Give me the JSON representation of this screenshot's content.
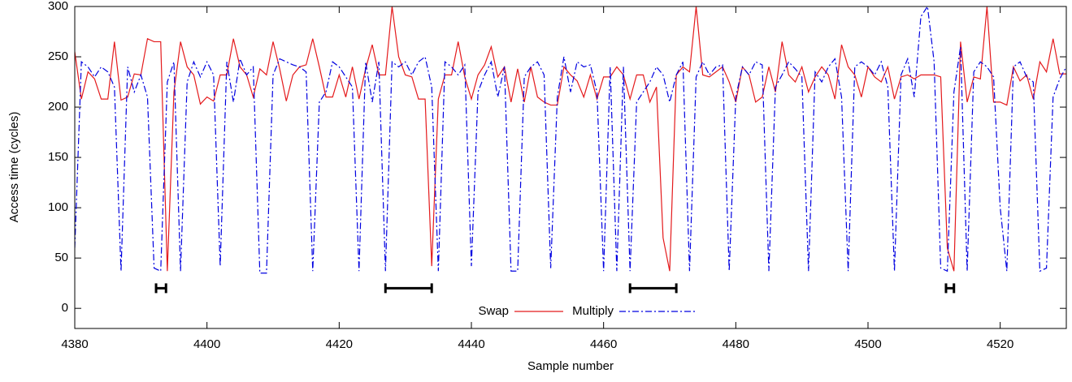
{
  "chart_data": {
    "type": "line",
    "x_label": "Sample number",
    "y_label": "Access time (cycles)",
    "xlim": [
      4380,
      4530
    ],
    "xticks": [
      4380,
      4400,
      4420,
      4440,
      4460,
      4480,
      4500,
      4520
    ],
    "ylim": [
      -20,
      300
    ],
    "yticks": [
      0,
      50,
      100,
      150,
      200,
      250,
      300
    ],
    "legend": "bottom",
    "x": [
      4380,
      4381,
      4382,
      4383,
      4384,
      4385,
      4386,
      4387,
      4388,
      4389,
      4390,
      4391,
      4392,
      4393,
      4394,
      4395,
      4396,
      4397,
      4398,
      4399,
      4400,
      4401,
      4402,
      4403,
      4404,
      4405,
      4406,
      4407,
      4408,
      4409,
      4410,
      4411,
      4412,
      4413,
      4414,
      4415,
      4416,
      4417,
      4418,
      4419,
      4420,
      4421,
      4422,
      4423,
      4424,
      4425,
      4426,
      4427,
      4428,
      4429,
      4430,
      4431,
      4432,
      4433,
      4434,
      4435,
      4436,
      4437,
      4438,
      4439,
      4440,
      4441,
      4442,
      4443,
      4444,
      4445,
      4446,
      4447,
      4448,
      4449,
      4450,
      4451,
      4452,
      4453,
      4454,
      4455,
      4456,
      4457,
      4458,
      4459,
      4460,
      4461,
      4462,
      4463,
      4464,
      4465,
      4466,
      4467,
      4468,
      4469,
      4470,
      4471,
      4472,
      4473,
      4474,
      4475,
      4476,
      4477,
      4478,
      4479,
      4480,
      4481,
      4482,
      4483,
      4484,
      4485,
      4486,
      4487,
      4488,
      4489,
      4490,
      4491,
      4492,
      4493,
      4494,
      4495,
      4496,
      4497,
      4498,
      4499,
      4500,
      4501,
      4502,
      4503,
      4504,
      4505,
      4506,
      4507,
      4508,
      4509,
      4510,
      4511,
      4512,
      4513,
      4514,
      4515,
      4516,
      4517,
      4518,
      4519,
      4520,
      4521,
      4522,
      4523,
      4524,
      4525,
      4526,
      4527,
      4528,
      4529,
      4530
    ],
    "series": [
      {
        "name": "Swap",
        "color": "#e41a1c",
        "dash": "none",
        "values": [
          255,
          208,
          235,
          228,
          208,
          208,
          265,
          207,
          210,
          233,
          232,
          268,
          265,
          265,
          37,
          215,
          265,
          240,
          232,
          203,
          210,
          206,
          232,
          232,
          268,
          240,
          232,
          210,
          238,
          232,
          265,
          238,
          206,
          232,
          240,
          242,
          268,
          240,
          210,
          210,
          232,
          210,
          240,
          208,
          238,
          262,
          232,
          232,
          300,
          250,
          232,
          230,
          208,
          208,
          42,
          208,
          232,
          232,
          265,
          230,
          208,
          232,
          242,
          260,
          230,
          240,
          205,
          238,
          205,
          240,
          210,
          205,
          202,
          202,
          240,
          232,
          226,
          210,
          232,
          208,
          230,
          230,
          240,
          232,
          208,
          232,
          232,
          205,
          220,
          70,
          37,
          232,
          240,
          235,
          300,
          232,
          230,
          235,
          240,
          225,
          205,
          240,
          232,
          205,
          210,
          240,
          215,
          265,
          232,
          225,
          240,
          215,
          230,
          240,
          232,
          208,
          262,
          240,
          232,
          210,
          240,
          230,
          225,
          240,
          208,
          230,
          232,
          228,
          232,
          232,
          232,
          230,
          60,
          37,
          265,
          205,
          230,
          228,
          300,
          205,
          205,
          202,
          240,
          226,
          232,
          208,
          245,
          235,
          268,
          233,
          233
        ]
      },
      {
        "name": "Multiply",
        "color": "#0000e0",
        "dash": "8 3 2 3",
        "values": [
          60,
          245,
          240,
          230,
          240,
          235,
          220,
          37,
          240,
          215,
          232,
          210,
          40,
          37,
          225,
          245,
          37,
          225,
          245,
          230,
          245,
          232,
          42,
          245,
          205,
          248,
          232,
          240,
          35,
          35,
          232,
          248,
          245,
          242,
          240,
          235,
          37,
          205,
          215,
          245,
          240,
          230,
          220,
          37,
          245,
          205,
          245,
          37,
          245,
          240,
          245,
          232,
          245,
          250,
          220,
          37,
          245,
          240,
          232,
          242,
          42,
          215,
          232,
          245,
          210,
          240,
          37,
          37,
          230,
          240,
          245,
          232,
          40,
          210,
          250,
          215,
          245,
          240,
          242,
          215,
          37,
          240,
          37,
          240,
          37,
          205,
          215,
          225,
          240,
          232,
          205,
          232,
          245,
          37,
          230,
          245,
          232,
          240,
          242,
          37,
          210,
          240,
          232,
          245,
          242,
          37,
          220,
          232,
          245,
          238,
          230,
          37,
          235,
          225,
          240,
          248,
          210,
          37,
          240,
          245,
          240,
          232,
          245,
          220,
          37,
          232,
          248,
          210,
          290,
          300,
          245,
          40,
          37,
          215,
          260,
          37,
          235,
          245,
          240,
          230,
          100,
          37,
          240,
          245,
          230,
          225,
          37,
          40,
          210,
          228,
          240
        ]
      }
    ],
    "intervals": [
      {
        "x": [
          4392.3,
          4393.8
        ],
        "y": 20
      },
      {
        "x": [
          4427,
          4434
        ],
        "y": 20
      },
      {
        "x": [
          4464,
          4471
        ],
        "y": 20
      },
      {
        "x": [
          4511.8,
          4513
        ],
        "y": 20
      }
    ]
  }
}
